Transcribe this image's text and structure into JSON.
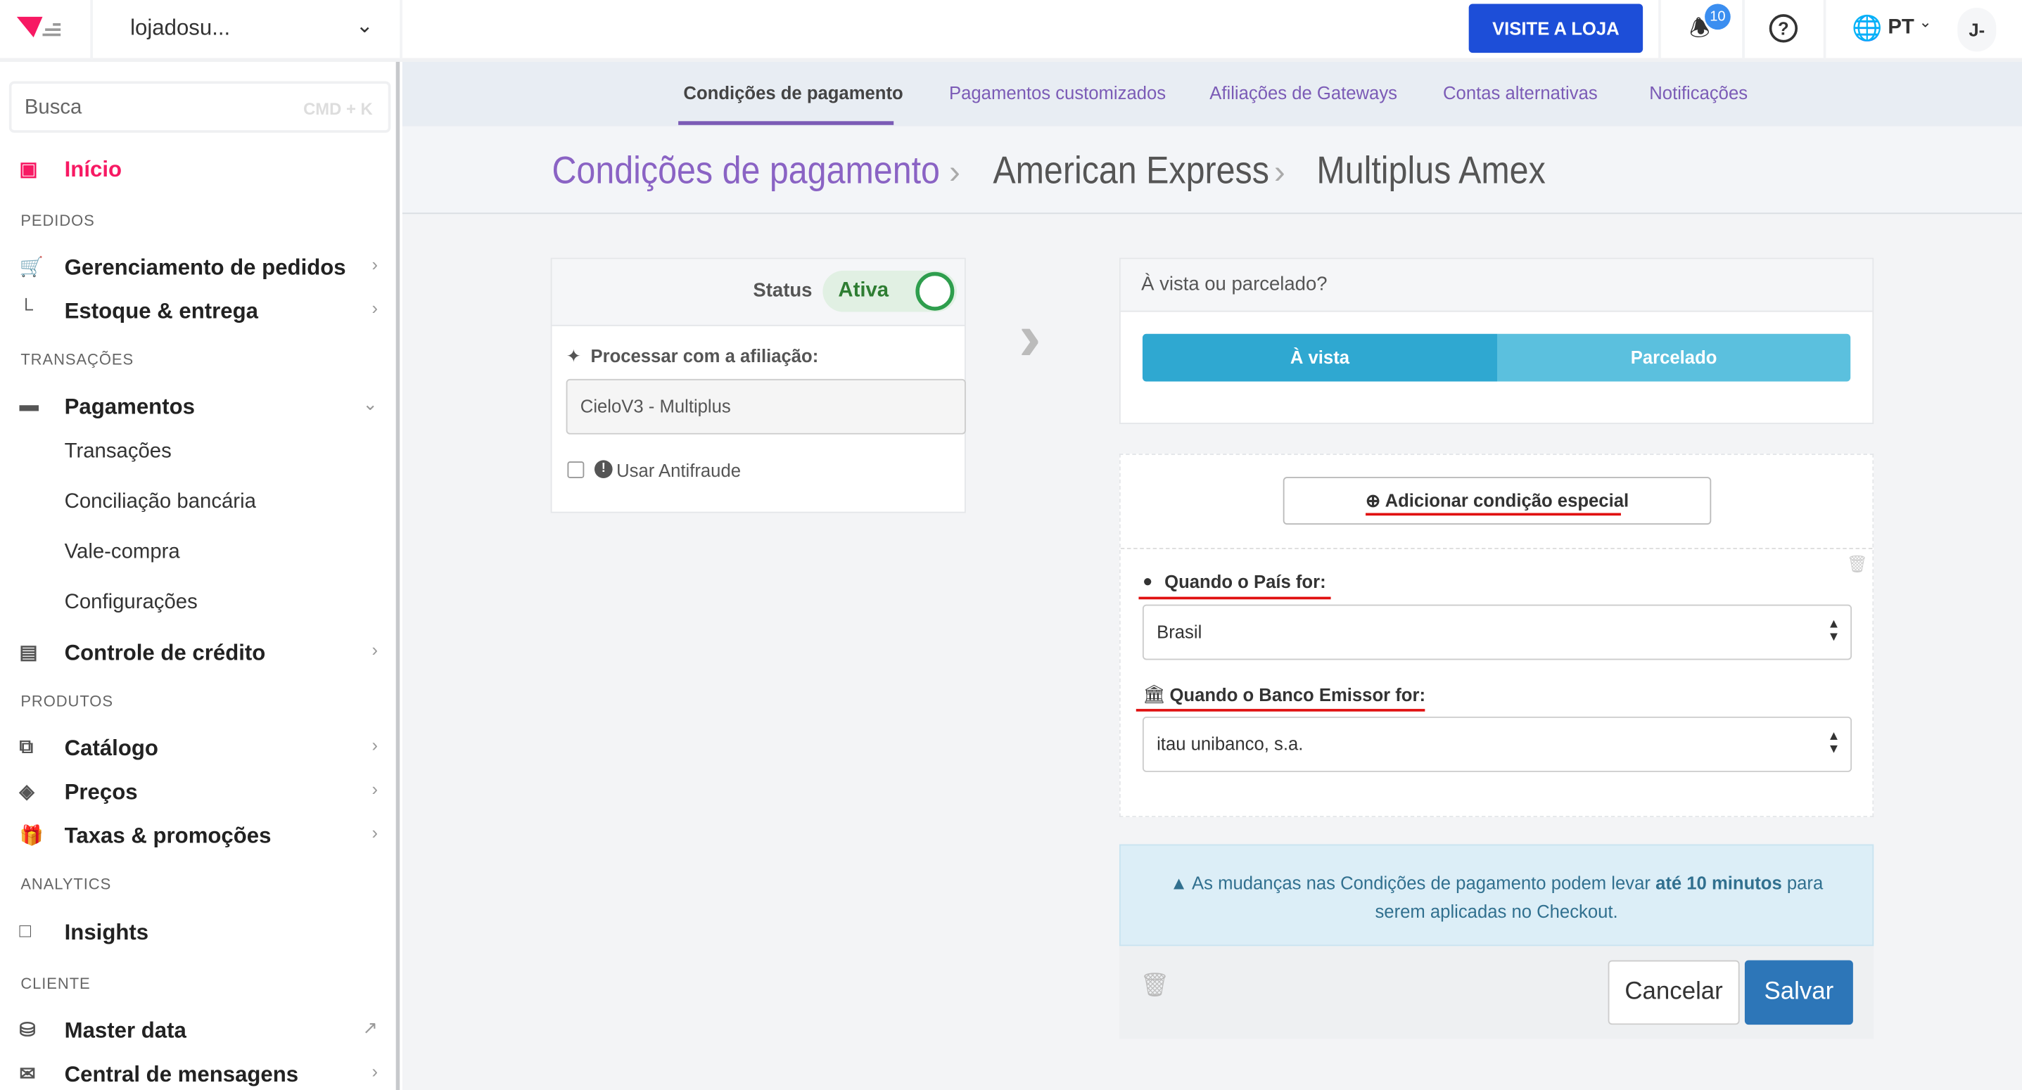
{
  "topbar": {
    "store": "lojadosu...",
    "visit_button": "VISITE A LOJA",
    "notifications_count": "10",
    "language": "PT",
    "user_initials": "J-"
  },
  "sidebar": {
    "search_placeholder": "Busca",
    "search_shortcut": "CMD + K",
    "home": "Início",
    "sections": {
      "pedidos": "PEDIDOS",
      "transacoes": "TRANSAÇÕES",
      "produtos": "PRODUTOS",
      "analytics": "ANALYTICS",
      "cliente": "CLIENTE"
    },
    "items": {
      "orders": "Gerenciamento de pedidos",
      "stock": "Estoque & entrega",
      "payments": "Pagamentos",
      "credit": "Controle de crédito",
      "catalog": "Catálogo",
      "prices": "Preços",
      "promos": "Taxas & promoções",
      "insights": "Insights",
      "masterdata": "Master data",
      "messages": "Central de mensagens"
    },
    "payments_sub": [
      "Transações",
      "Conciliação bancária",
      "Vale-compra",
      "Configurações"
    ]
  },
  "tabs": [
    "Condições de pagamento",
    "Pagamentos customizados",
    "Afiliações de Gateways",
    "Contas alternativas",
    "Notificações"
  ],
  "breadcrumb": [
    "Condições de pagamento",
    "American Express",
    "Multiplus Amex"
  ],
  "left_card": {
    "status_label": "Status",
    "status_value": "Ativa",
    "affiliation_label": "Processar com a afiliação:",
    "affiliation_value": "CieloV3 - Multiplus",
    "antifraud_label": "Usar Antifraude"
  },
  "right": {
    "question": "À vista ou parcelado?",
    "option_cash": "À vista",
    "option_installments": "Parcelado",
    "add_condition": "Adicionar condição especial",
    "country_label": "Quando o País for:",
    "country_value": "Brasil",
    "bank_label": "Quando o Banco Emissor for:",
    "bank_value": "itau unibanco, s.a.",
    "notice_pre": "As mudanças nas Condições de pagamento podem levar ",
    "notice_bold": "até 10 minutos",
    "notice_post": " para",
    "notice_line2": "serem aplicadas no Checkout.",
    "cancel": "Cancelar",
    "save": "Salvar"
  },
  "colors": {
    "brand": "#f71963",
    "accent": "#1d4ed8",
    "purple": "#7b5bb6",
    "toggle_green": "#2e9e4d",
    "segment_active": "#2fa8d1",
    "segment_inactive": "#5bc0de",
    "save": "#2d76b8"
  }
}
